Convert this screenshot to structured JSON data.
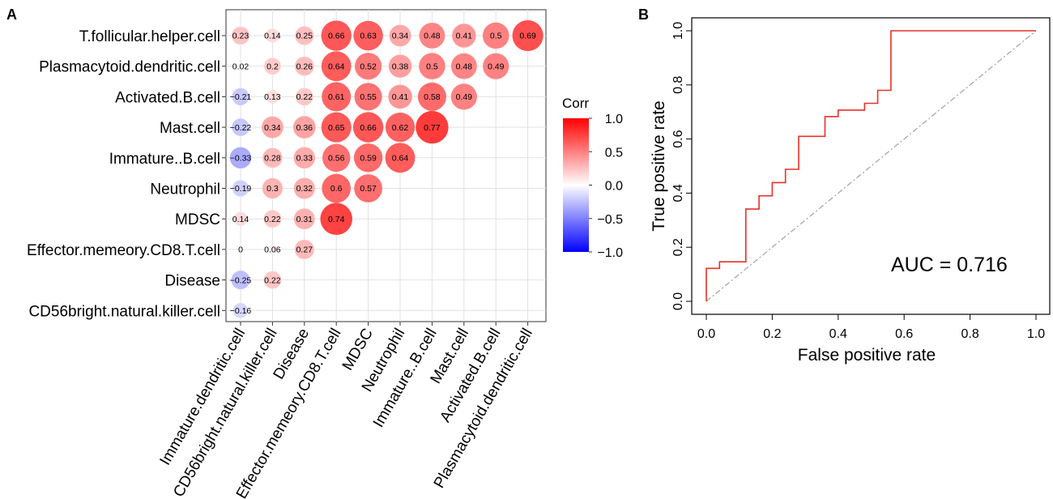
{
  "panel_labels": {
    "a": "A",
    "b": "B"
  },
  "chart_data": [
    {
      "type": "heatmap",
      "panel": "A",
      "rows": [
        "T.follicular.helper.cell",
        "Plasmacytoid.dendritic.cell",
        "Activated.B.cell",
        "Mast.cell",
        "Immature..B.cell",
        "Neutrophil",
        "MDSC",
        "Effector.memeory.CD8.T.cell",
        "Disease",
        "CD56bright.natural.killer.cell"
      ],
      "columns": [
        "Immature.dendritic.cell",
        "CD56bright.natural.killer.cell",
        "Disease",
        "Effector.memeory.CD8.T.cell",
        "MDSC",
        "Neutrophil",
        "Immature..B.cell",
        "Mast.cell",
        "Activated.B.cell",
        "Plasmacytoid.dendritic.cell"
      ],
      "values": [
        [
          0.23,
          0.14,
          0.25,
          0.66,
          0.63,
          0.34,
          0.48,
          0.41,
          0.5,
          0.69
        ],
        [
          0.02,
          0.2,
          0.26,
          0.64,
          0.52,
          0.38,
          0.5,
          0.48,
          0.49
        ],
        [
          -0.21,
          0.13,
          0.22,
          0.61,
          0.55,
          0.41,
          0.58,
          0.49
        ],
        [
          -0.22,
          0.34,
          0.36,
          0.65,
          0.66,
          0.62,
          0.77
        ],
        [
          -0.33,
          0.28,
          0.33,
          0.56,
          0.59,
          0.64
        ],
        [
          -0.19,
          0.3,
          0.32,
          0.6,
          0.57
        ],
        [
          0.14,
          0.22,
          0.31,
          0.74
        ],
        [
          0,
          0.06,
          0.27
        ],
        [
          -0.25,
          0.22
        ],
        [
          -0.16
        ]
      ],
      "legend": {
        "title": "Corr",
        "ticks": [
          "1.0",
          "0.5",
          "0.0",
          "−0.5",
          "−1.0"
        ],
        "tick_values": [
          1.0,
          0.5,
          0.0,
          -0.5,
          -1.0
        ],
        "range": [
          -1,
          1
        ],
        "low_color": "#0000ff",
        "mid_color": "#ffffff",
        "high_color": "#ff0000"
      }
    },
    {
      "type": "line",
      "panel": "B",
      "xlabel": "False positive rate",
      "ylabel": "True positive rate",
      "xlim": [
        0,
        1
      ],
      "ylim": [
        0,
        1
      ],
      "xticks": [
        "0.0",
        "0.2",
        "0.4",
        "0.6",
        "0.8",
        "1.0"
      ],
      "yticks": [
        "0.0",
        "0.2",
        "0.4",
        "0.6",
        "0.8",
        "1.0"
      ],
      "tick_values": [
        0,
        0.2,
        0.4,
        0.6,
        0.8,
        1.0
      ],
      "annotation": "AUC = 0.716",
      "roc_color": "#e8312a",
      "diagonal_color": "#a0a0a0",
      "roc": [
        [
          0,
          0
        ],
        [
          0,
          0.122
        ],
        [
          0.04,
          0.122
        ],
        [
          0.04,
          0.146
        ],
        [
          0.12,
          0.146
        ],
        [
          0.12,
          0.341
        ],
        [
          0.16,
          0.341
        ],
        [
          0.16,
          0.39
        ],
        [
          0.2,
          0.39
        ],
        [
          0.2,
          0.439
        ],
        [
          0.24,
          0.439
        ],
        [
          0.24,
          0.488
        ],
        [
          0.28,
          0.488
        ],
        [
          0.28,
          0.61
        ],
        [
          0.36,
          0.61
        ],
        [
          0.36,
          0.683
        ],
        [
          0.4,
          0.683
        ],
        [
          0.4,
          0.707
        ],
        [
          0.48,
          0.707
        ],
        [
          0.48,
          0.732
        ],
        [
          0.52,
          0.732
        ],
        [
          0.52,
          0.78
        ],
        [
          0.56,
          0.78
        ],
        [
          0.56,
          1.0
        ],
        [
          1.0,
          1.0
        ]
      ]
    }
  ]
}
